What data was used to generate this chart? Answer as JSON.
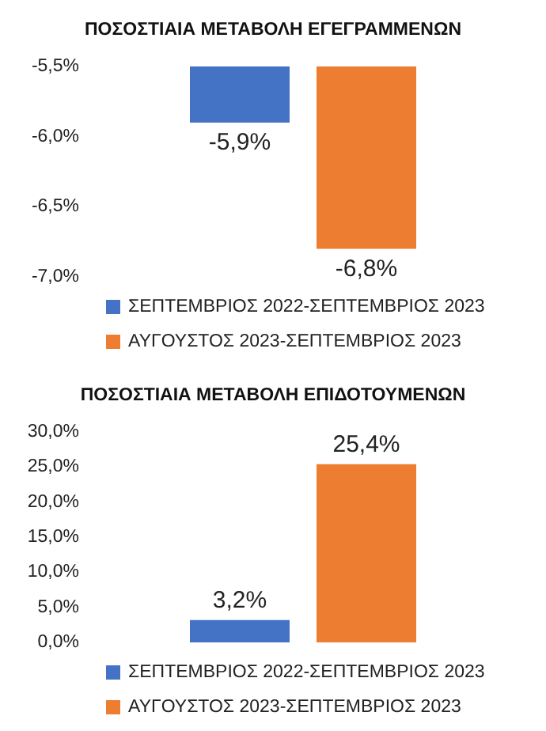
{
  "chart_data": [
    {
      "type": "bar",
      "title": "ΠΟΣΟΣΤΙΑΙΑ ΜΕΤΑΒΟΛΗ ΕΓΕΓΡΑΜΜΕΝΩΝ",
      "categories": [
        null
      ],
      "series": [
        {
          "name": "ΣΕΠΤΕΜΒΡΙΟΣ 2022-ΣΕΠΤΕΜΒΡΙΟΣ 2023",
          "color": "#4472c4",
          "values": [
            -5.9
          ],
          "value_labels": [
            "-5,9%"
          ]
        },
        {
          "name": "ΑΥΓΟΥΣΤΟΣ 2023-ΣΕΠΤΕΜΒΡΙΟΣ 2023",
          "color": "#ed7d31",
          "values": [
            -6.8
          ],
          "value_labels": [
            "-6,8%"
          ]
        }
      ],
      "ylim": [
        -7.0,
        -5.5
      ],
      "yticks": [
        {
          "value": -7.0,
          "label": "-7,0%"
        },
        {
          "value": -6.5,
          "label": "-6,5%"
        },
        {
          "value": -6.0,
          "label": "-6,0%"
        },
        {
          "value": -5.5,
          "label": "-5,5%"
        }
      ],
      "grid": false,
      "legend": "bottom",
      "tick_labels": "y"
    },
    {
      "type": "bar",
      "title": "ΠΟΣΟΣΤΙΑΙΑ ΜΕΤΑΒΟΛΗ ΕΠΙΔΟΤΟΥΜΕΝΩΝ",
      "categories": [
        null
      ],
      "series": [
        {
          "name": "ΣΕΠΤΕΜΒΡΙΟΣ 2022-ΣΕΠΤΕΜΒΡΙΟΣ 2023",
          "color": "#4472c4",
          "values": [
            3.2
          ],
          "value_labels": [
            "3,2%"
          ]
        },
        {
          "name": "ΑΥΓΟΥΣΤΟΣ 2023-ΣΕΠΤΕΜΒΡΙΟΣ 2023",
          "color": "#ed7d31",
          "values": [
            25.4
          ],
          "value_labels": [
            "25,4%"
          ]
        }
      ],
      "ylim": [
        0,
        30
      ],
      "yticks": [
        {
          "value": 0,
          "label": "0,0%"
        },
        {
          "value": 5,
          "label": "5,0%"
        },
        {
          "value": 10,
          "label": "10,0%"
        },
        {
          "value": 15,
          "label": "15,0%"
        },
        {
          "value": 20,
          "label": "20,0%"
        },
        {
          "value": 25,
          "label": "25,0%"
        },
        {
          "value": 30,
          "label": "30,0%"
        }
      ],
      "grid": false,
      "legend": "bottom",
      "tick_labels": "y"
    }
  ]
}
